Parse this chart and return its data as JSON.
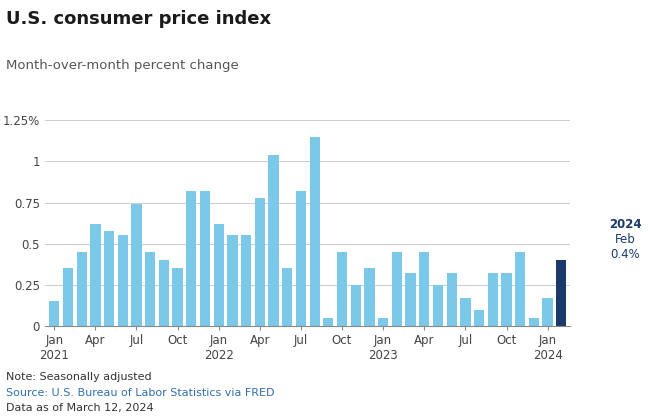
{
  "title": "U.S. consumer price index",
  "subtitle": "Month-over-month percent change",
  "note": "Note: Seasonally adjusted",
  "source": "Source: U.S. Bureau of Labor Statistics via FRED",
  "data_date": "Data as of March 12, 2024",
  "bar_color_default": "#7BC8E8",
  "bar_color_last": "#1A3A6B",
  "values": [
    0.15,
    0.35,
    0.45,
    0.62,
    0.58,
    0.55,
    0.74,
    0.45,
    0.4,
    0.35,
    0.82,
    0.82,
    0.62,
    0.55,
    0.55,
    0.78,
    1.04,
    0.35,
    0.82,
    1.15,
    0.05,
    0.45,
    0.25,
    0.35,
    0.05,
    0.45,
    0.32,
    0.45,
    0.25,
    0.32,
    0.17,
    0.1,
    0.32,
    0.32,
    0.45,
    0.05,
    0.17,
    0.4
  ],
  "n_bars": 38,
  "last_bar_index": 37,
  "x_tick_positions": [
    0,
    3,
    6,
    9,
    12,
    15,
    18,
    21,
    24,
    27,
    30,
    33,
    36
  ],
  "x_tick_months": [
    "Jan",
    "Apr",
    "Jul",
    "Oct",
    "Jan",
    "Apr",
    "Jul",
    "Oct",
    "Jan",
    "Apr",
    "Jul",
    "Oct",
    "Jan"
  ],
  "x_tick_years": [
    "2021",
    "",
    "",
    "",
    "2022",
    "",
    "",
    "",
    "2023",
    "",
    "",
    "",
    "2024"
  ],
  "ylim": [
    0,
    1.32
  ],
  "yticks": [
    0,
    0.25,
    0.5,
    0.75,
    1.0,
    1.25
  ],
  "ytick_labels": [
    "0",
    "0.25",
    "0.5",
    "0.75",
    "1",
    "1.25%"
  ],
  "background_color": "#FFFFFF",
  "grid_color": "#CCCCCC",
  "title_color": "#1a1a1a",
  "subtitle_color": "#555555",
  "source_color": "#3070B0",
  "note_color": "#333333",
  "annotation_year": "2024",
  "annotation_month": "Feb",
  "annotation_value": "0.4%",
  "annotation_color_bold": "#1A3A6B",
  "annotation_color_value": "#1A3A6B"
}
